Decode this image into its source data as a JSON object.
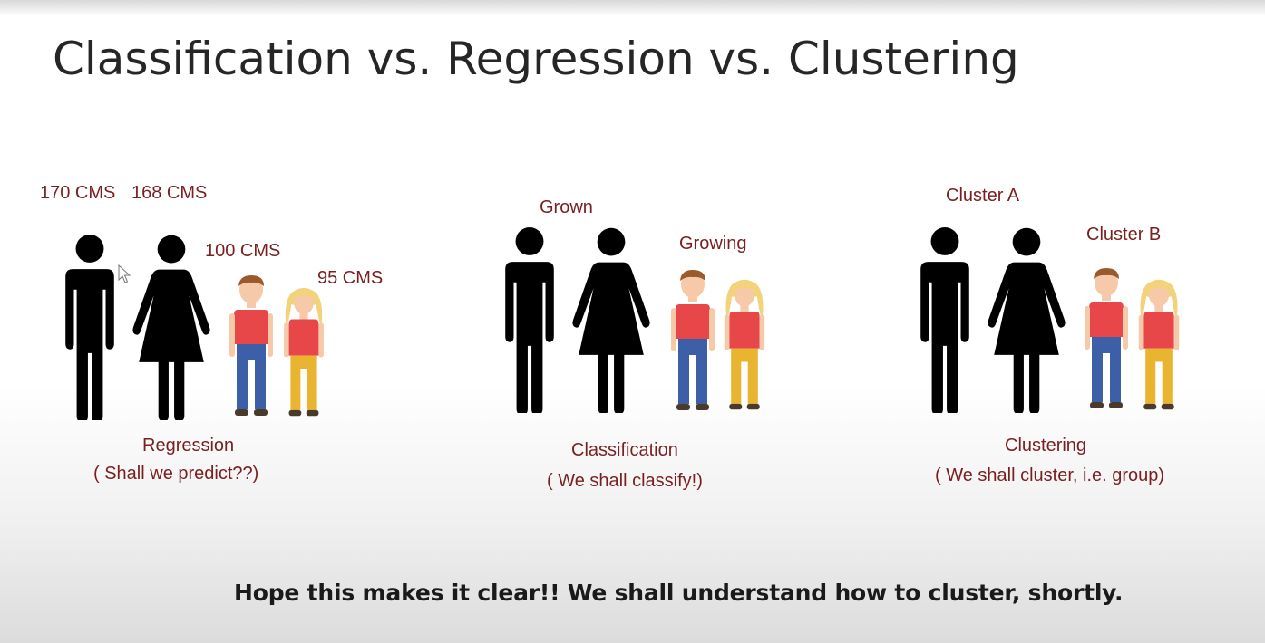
{
  "slide": {
    "title": "Classification vs. Regression vs. Clustering",
    "caption": "Hope this makes it clear!! We shall understand how to cluster, shortly."
  },
  "regression": {
    "label_man": "170 CMS",
    "label_woman": "168 CMS",
    "label_boy": "100 CMS",
    "label_girl": "95 CMS",
    "title": "Regression",
    "subtitle": "( Shall we predict??)"
  },
  "classification": {
    "label_adults": "Grown",
    "label_kids": "Growing",
    "title": "Classification",
    "subtitle": "( We shall classify!)"
  },
  "clustering": {
    "label_adults": "Cluster A",
    "label_kids": "Cluster B",
    "title": "Clustering",
    "subtitle": "( We shall cluster, i.e. group)"
  },
  "colors": {
    "label": "#7a1f1f",
    "title": "#262626",
    "silhouette": "#000000",
    "shirt": "#e8474a",
    "pants_boy": "#3d5fa8",
    "pants_girl": "#e9b531",
    "hair_girl": "#f2d27a",
    "hair_boy": "#9a5a2c",
    "skin": "#f6c9a8"
  }
}
